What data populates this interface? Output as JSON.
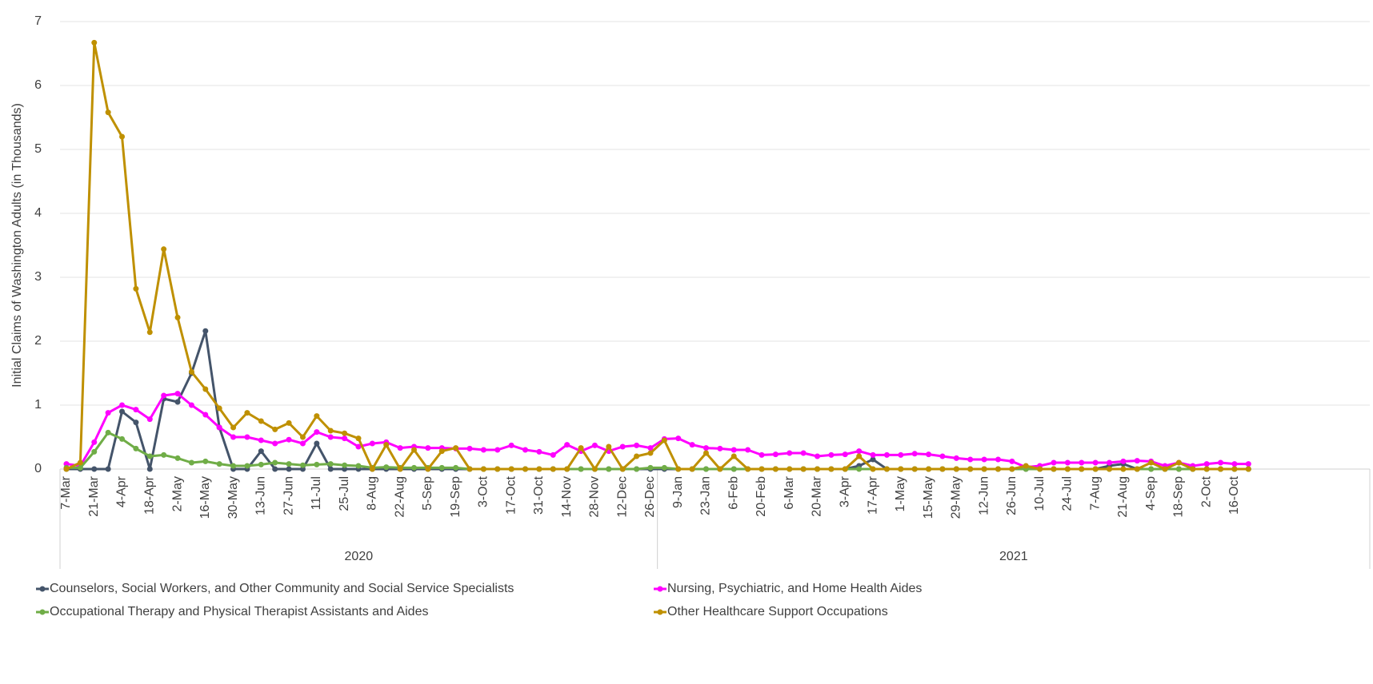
{
  "chart_data": {
    "type": "line",
    "y_label": "Initial Claims of Washington Adults (in Thousands)",
    "categories": [
      "7-Mar",
      null,
      "21-Mar",
      null,
      "4-Apr",
      null,
      "18-Apr",
      null,
      "2-May",
      null,
      "16-May",
      null,
      "30-May",
      null,
      "13-Jun",
      null,
      "27-Jun",
      null,
      "11-Jul",
      null,
      "25-Jul",
      null,
      "8-Aug",
      null,
      "22-Aug",
      null,
      "5-Sep",
      null,
      "19-Sep",
      null,
      "3-Oct",
      null,
      "17-Oct",
      null,
      "31-Oct",
      null,
      "14-Nov",
      null,
      "28-Nov",
      null,
      "12-Dec",
      null,
      "26-Dec",
      null,
      "9-Jan",
      null,
      "23-Jan",
      null,
      "6-Feb",
      null,
      "20-Feb",
      null,
      "6-Mar",
      null,
      "20-Mar",
      null,
      "3-Apr",
      null,
      "17-Apr",
      null,
      "1-May",
      null,
      "15-May",
      null,
      "29-May",
      null,
      "12-Jun",
      null,
      "26-Jun",
      null,
      "10-Jul",
      null,
      "24-Jul",
      null,
      "7-Aug",
      null,
      "21-Aug",
      null,
      "4-Sep",
      null,
      "18-Sep",
      null,
      "2-Oct",
      null,
      "16-Oct",
      null
    ],
    "year_groups": [
      {
        "label": "2020",
        "count": 43
      },
      {
        "label": "2021",
        "count": 43
      }
    ],
    "ylim": [
      0,
      7
    ],
    "yticks": [
      0,
      1,
      2,
      3,
      4,
      5,
      6,
      7
    ],
    "grid": true,
    "series": [
      {
        "name": "Counselors, Social Workers, and Other Community and Social Service Specialists",
        "color": "#44546a",
        "values": [
          0,
          0,
          0,
          0,
          0.9,
          0.73,
          0,
          1.1,
          1.05,
          1.5,
          2.16,
          0.65,
          0,
          0,
          0.28,
          0,
          0,
          0,
          0.4,
          0,
          0,
          0,
          0,
          0,
          0,
          0,
          0,
          0,
          0,
          0,
          0,
          0,
          0,
          0,
          0,
          0,
          0,
          0,
          0,
          0,
          0,
          0,
          0,
          0,
          0,
          0,
          0,
          0,
          0,
          0,
          0,
          0,
          0,
          0,
          0,
          0,
          0,
          0.05,
          0.15,
          0,
          0,
          0,
          0,
          0,
          0,
          0,
          0,
          0,
          0,
          0,
          0,
          0,
          0,
          0,
          0,
          0.05,
          0.08,
          0,
          0,
          0,
          0,
          0,
          0,
          0,
          0,
          0
        ]
      },
      {
        "name": "Nursing, Psychiatric, and Home Health Aides",
        "color": "#ff00ff",
        "values": [
          0.08,
          0.05,
          0.42,
          0.88,
          1.0,
          0.93,
          0.78,
          1.15,
          1.18,
          1.0,
          0.85,
          0.65,
          0.5,
          0.5,
          0.45,
          0.4,
          0.46,
          0.4,
          0.58,
          0.5,
          0.48,
          0.35,
          0.4,
          0.42,
          0.33,
          0.35,
          0.33,
          0.33,
          0.32,
          0.32,
          0.3,
          0.3,
          0.37,
          0.3,
          0.27,
          0.22,
          0.38,
          0.28,
          0.37,
          0.28,
          0.35,
          0.37,
          0.33,
          0.47,
          0.48,
          0.38,
          0.33,
          0.32,
          0.3,
          0.3,
          0.22,
          0.23,
          0.25,
          0.25,
          0.2,
          0.22,
          0.23,
          0.28,
          0.22,
          0.22,
          0.22,
          0.24,
          0.23,
          0.2,
          0.17,
          0.15,
          0.15,
          0.15,
          0.12,
          0.03,
          0.05,
          0.1,
          0.1,
          0.1,
          0.1,
          0.1,
          0.12,
          0.13,
          0.12,
          0.05,
          0.1,
          0.05,
          0.08,
          0.1,
          0.08,
          0.08
        ]
      },
      {
        "name": "Occupational Therapy and Physical Therapist Assistants and Aides",
        "color": "#70ad47",
        "values": [
          0.02,
          0.02,
          0.27,
          0.57,
          0.47,
          0.32,
          0.2,
          0.22,
          0.17,
          0.1,
          0.12,
          0.08,
          0.05,
          0.05,
          0.07,
          0.1,
          0.08,
          0.06,
          0.07,
          0.08,
          0.06,
          0.05,
          0.02,
          0.03,
          0.02,
          0.02,
          0.02,
          0.02,
          0.02,
          0,
          0,
          0,
          0,
          0,
          0,
          0,
          0,
          0,
          0,
          0,
          0,
          0,
          0.02,
          0.02,
          0,
          0,
          0,
          0,
          0,
          0,
          0,
          0,
          0,
          0,
          0,
          0,
          0,
          0,
          0,
          0,
          0,
          0,
          0,
          0,
          0,
          0,
          0,
          0,
          0,
          0,
          0,
          0,
          0,
          0,
          0,
          0,
          0,
          0,
          0,
          0,
          0,
          0,
          0,
          0,
          0,
          0
        ]
      },
      {
        "name": "Other Healthcare Support Occupations",
        "color": "#bf9000",
        "values": [
          0,
          0.1,
          6.67,
          5.58,
          5.2,
          2.82,
          2.14,
          3.44,
          2.37,
          1.52,
          1.25,
          0.95,
          0.65,
          0.88,
          0.75,
          0.62,
          0.72,
          0.5,
          0.83,
          0.6,
          0.56,
          0.48,
          0,
          0.38,
          0,
          0.3,
          0,
          0.28,
          0.33,
          0,
          0,
          0,
          0,
          0,
          0,
          0,
          0,
          0.33,
          0,
          0.35,
          0,
          0.2,
          0.25,
          0.45,
          0,
          0,
          0.25,
          0,
          0.2,
          0,
          0,
          0,
          0,
          0,
          0,
          0,
          0,
          0.2,
          0,
          0,
          0,
          0,
          0,
          0,
          0,
          0,
          0,
          0,
          0,
          0.05,
          0,
          0,
          0,
          0,
          0,
          0,
          0,
          0,
          0.1,
          0,
          0.1,
          0,
          0,
          0,
          0,
          0
        ]
      }
    ]
  }
}
